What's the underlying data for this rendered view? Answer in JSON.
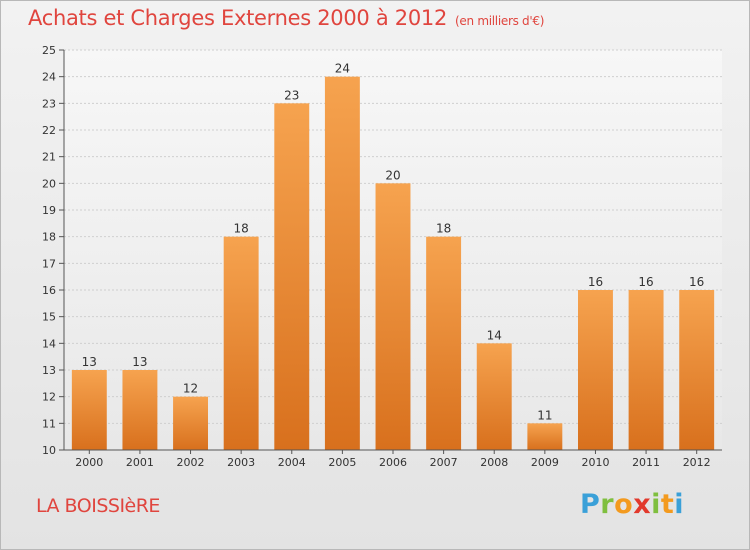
{
  "title": "Achats et Charges Externes 2000 à 2012",
  "subtitle": "(en milliers d'€)",
  "location": "LA BOISSIèRE",
  "logo": {
    "letters": [
      "P",
      "r",
      "o",
      "x",
      "i",
      "t",
      "i"
    ],
    "colors": [
      "#3aa0d8",
      "#7fbf3f",
      "#f39a1e",
      "#e2392c",
      "#7fbf3f",
      "#f39a1e",
      "#3aa0d8"
    ]
  },
  "colors": {
    "bar_top": "#f6a34f",
    "bar_bottom": "#d8701d",
    "title": "#e0453e",
    "axis_text": "#333333",
    "grid": "#cfcfcf"
  },
  "chart_data": {
    "type": "bar",
    "categories": [
      "2000",
      "2001",
      "2002",
      "2003",
      "2004",
      "2005",
      "2006",
      "2007",
      "2008",
      "2009",
      "2010",
      "2011",
      "2012"
    ],
    "values": [
      13,
      13,
      12,
      18,
      23,
      24,
      20,
      18,
      14,
      11,
      16,
      16,
      16
    ],
    "ylim": [
      10,
      25
    ],
    "yticks": [
      10,
      11,
      12,
      13,
      14,
      15,
      16,
      17,
      18,
      19,
      20,
      21,
      22,
      23,
      24,
      25
    ],
    "xlabel": "",
    "ylabel": "",
    "grid": true,
    "data_labels": true
  }
}
